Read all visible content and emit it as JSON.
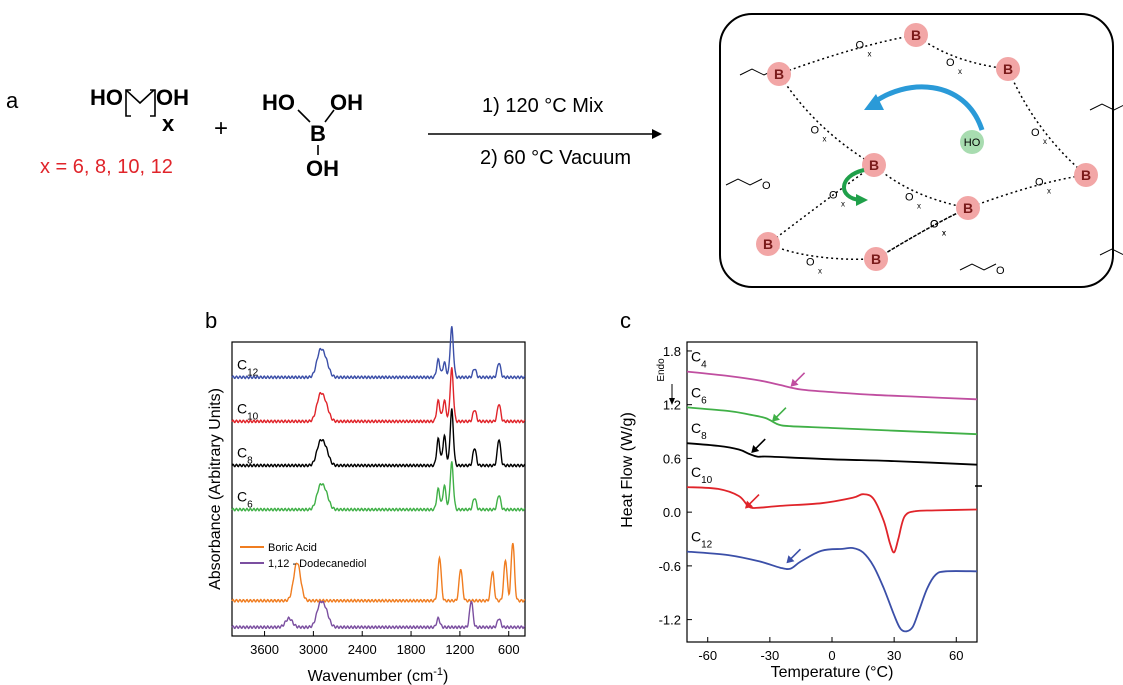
{
  "panel_a": {
    "label": "a",
    "diol_left": "HO",
    "diol_right": "OH",
    "diol_sub": "x",
    "x_values": "x = 6, 8, 10, 12",
    "plus": "+",
    "boric_ho": "HO",
    "boric_oh_top": "OH",
    "boric_b": "B",
    "boric_oh_bottom": "OH",
    "step1": "1) 120 °C Mix",
    "step2": "2) 60 °C Vacuum",
    "network_b": "B",
    "network_ho": "HO",
    "network_o": "O",
    "network_x": "x"
  },
  "panel_b": {
    "label": "b",
    "ylabel": "Absorbance (Arbitrary Units)",
    "xlabel_main": "Wavenumber (cm",
    "xlabel_sup": "-1",
    "xlabel_end": ")",
    "legend_boric": "Boric Acid",
    "legend_diol": "1,12 - Dodecanediol"
  },
  "panel_c": {
    "label": "c",
    "ylabel": "Heat Flow (W/g)",
    "xlabel": "Temperature (°C)",
    "endo": "Endo"
  },
  "chart_data": [
    {
      "type": "line",
      "xlabel": "Wavenumber (cm-1)",
      "ylabel": "Absorbance (Arbitrary Units)",
      "xlim": [
        4000,
        400
      ],
      "x_ticks": [
        3600,
        3000,
        2400,
        1800,
        1200,
        600
      ],
      "y_ticks": [],
      "series": [
        {
          "name": "C12",
          "sub": "12",
          "color": "#3b4fa8",
          "offset": 0.88,
          "peaks": [
            [
              2920,
              0.08
            ],
            [
              2850,
              0.05
            ],
            [
              1465,
              0.06
            ],
            [
              1390,
              0.05
            ],
            [
              1300,
              0.17
            ],
            [
              1020,
              0.03
            ],
            [
              720,
              0.05
            ]
          ]
        },
        {
          "name": "C10",
          "sub": "10",
          "color": "#e0242a",
          "offset": 0.73,
          "peaks": [
            [
              2920,
              0.08
            ],
            [
              2850,
              0.05
            ],
            [
              1465,
              0.07
            ],
            [
              1390,
              0.07
            ],
            [
              1300,
              0.18
            ],
            [
              1020,
              0.04
            ],
            [
              720,
              0.06
            ]
          ]
        },
        {
          "name": "C8",
          "sub": "8",
          "color": "#000000",
          "offset": 0.58,
          "peaks": [
            [
              2920,
              0.07
            ],
            [
              2850,
              0.05
            ],
            [
              1465,
              0.09
            ],
            [
              1390,
              0.1
            ],
            [
              1300,
              0.19
            ],
            [
              1020,
              0.06
            ],
            [
              720,
              0.09
            ]
          ]
        },
        {
          "name": "C6",
          "sub": "6",
          "color": "#40b047",
          "offset": 0.43,
          "peaks": [
            [
              2920,
              0.07
            ],
            [
              2850,
              0.05
            ],
            [
              1465,
              0.07
            ],
            [
              1390,
              0.08
            ],
            [
              1300,
              0.16
            ],
            [
              1020,
              0.04
            ],
            [
              720,
              0.05
            ]
          ]
        },
        {
          "name": "Boric Acid",
          "color": "#f07d20",
          "offset": 0.12,
          "peaks": [
            [
              3200,
              0.13
            ],
            [
              1450,
              0.15
            ],
            [
              1190,
              0.11
            ],
            [
              800,
              0.1
            ],
            [
              640,
              0.14
            ],
            [
              550,
              0.2
            ]
          ]
        },
        {
          "name": "1,12 - Dodecanediol",
          "color": "#7b4fa0",
          "offset": 0.03,
          "peaks": [
            [
              3300,
              0.03
            ],
            [
              2920,
              0.07
            ],
            [
              2850,
              0.05
            ],
            [
              1465,
              0.03
            ],
            [
              1060,
              0.09
            ],
            [
              720,
              0.03
            ]
          ]
        }
      ]
    },
    {
      "type": "line",
      "xlabel": "Temperature (°C)",
      "ylabel": "Heat Flow (W/g)",
      "xlim": [
        -70,
        70
      ],
      "ylim": [
        -1.45,
        1.9
      ],
      "x_ticks": [
        -60,
        -30,
        0,
        30,
        60
      ],
      "y_ticks": [
        -1.2,
        -0.6,
        0.0,
        0.6,
        1.2,
        1.8
      ],
      "series": [
        {
          "name": "C4",
          "sub": "4",
          "color": "#c04ea0",
          "x": [
            -70,
            -50,
            -35,
            -25,
            -15,
            0,
            20,
            40,
            70
          ],
          "y": [
            1.57,
            1.52,
            1.47,
            1.42,
            1.37,
            1.34,
            1.31,
            1.29,
            1.26
          ],
          "arrow_at": [
            -20,
            1.4
          ]
        },
        {
          "name": "C6",
          "sub": "6",
          "color": "#40b047",
          "x": [
            -70,
            -50,
            -40,
            -32,
            -26,
            -20,
            0,
            30,
            70
          ],
          "y": [
            1.17,
            1.13,
            1.09,
            1.05,
            0.98,
            0.96,
            0.94,
            0.91,
            0.87
          ],
          "arrow_at": [
            -29,
            1.01
          ]
        },
        {
          "name": "C8",
          "sub": "8",
          "color": "#000000",
          "x": [
            -70,
            -55,
            -45,
            -40,
            -36,
            -30,
            0,
            30,
            70
          ],
          "y": [
            0.77,
            0.74,
            0.7,
            0.65,
            0.62,
            0.62,
            0.59,
            0.57,
            0.53
          ],
          "arrow_at": [
            -39,
            0.66
          ]
        },
        {
          "name": "C10",
          "sub": "10",
          "color": "#e0242a",
          "x": [
            -70,
            -55,
            -45,
            -40,
            -35,
            -25,
            -5,
            10,
            15,
            20,
            25,
            28,
            30,
            32,
            35,
            40,
            50,
            70
          ],
          "y": [
            0.28,
            0.26,
            0.18,
            0.06,
            0.05,
            0.07,
            0.1,
            0.16,
            0.2,
            0.15,
            -0.1,
            -0.35,
            -0.45,
            -0.3,
            -0.05,
            0.01,
            0.02,
            0.03
          ],
          "arrow_at": [
            -42,
            0.04
          ]
        },
        {
          "name": "C12",
          "sub": "12",
          "color": "#3b4fa8",
          "x": [
            -70,
            -50,
            -35,
            -25,
            -20,
            -15,
            -5,
            5,
            10,
            15,
            20,
            25,
            30,
            33,
            36,
            39,
            42,
            46,
            50,
            55,
            70
          ],
          "y": [
            -0.44,
            -0.48,
            -0.55,
            -0.62,
            -0.63,
            -0.55,
            -0.43,
            -0.41,
            -0.4,
            -0.45,
            -0.6,
            -0.85,
            -1.15,
            -1.3,
            -1.33,
            -1.28,
            -1.1,
            -0.85,
            -0.7,
            -0.66,
            -0.66
          ],
          "arrow_at": [
            -22,
            -0.57
          ]
        }
      ]
    }
  ]
}
